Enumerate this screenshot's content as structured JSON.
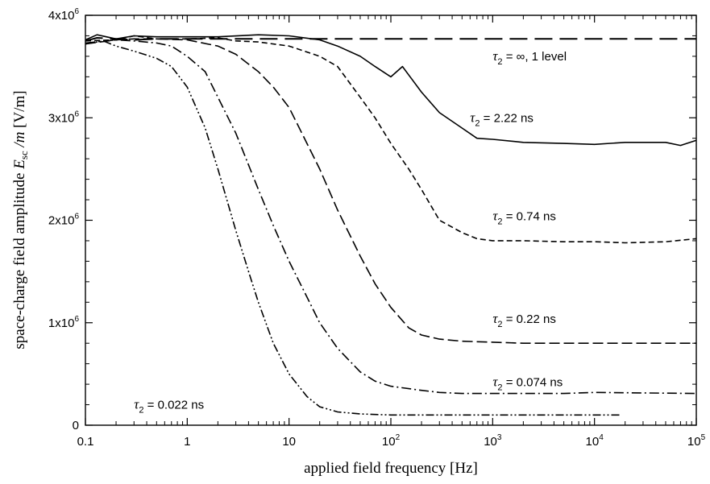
{
  "chart_data": {
    "type": "line",
    "title": "",
    "xlabel": "applied field frequency  [Hz]",
    "ylabel": {
      "prefix": "space-charge field amplitude  ",
      "symbol": "E",
      "symbol_sub": "sc",
      "divisor": " /m",
      "unit": "   [V/m]"
    },
    "xscale": "log",
    "xlim": [
      0.1,
      100000
    ],
    "ylim": [
      0,
      4000000
    ],
    "x_ticks": [
      {
        "value": 0.1,
        "base": "0.1",
        "exp": ""
      },
      {
        "value": 1,
        "base": "1",
        "exp": ""
      },
      {
        "value": 10,
        "base": "10",
        "exp": ""
      },
      {
        "value": 100,
        "base": "10",
        "exp": "2"
      },
      {
        "value": 1000,
        "base": "10",
        "exp": "3"
      },
      {
        "value": 10000,
        "base": "10",
        "exp": "4"
      },
      {
        "value": 100000,
        "base": "10",
        "exp": "5"
      }
    ],
    "y_ticks": [
      {
        "value": 0,
        "base": "0",
        "exp": ""
      },
      {
        "value": 1000000,
        "base": "1x10",
        "exp": "6"
      },
      {
        "value": 2000000,
        "base": "2x10",
        "exp": "6"
      },
      {
        "value": 3000000,
        "base": "3x10",
        "exp": "6"
      },
      {
        "value": 4000000,
        "base": "4x10",
        "exp": "6"
      }
    ],
    "grid": false,
    "legend": "none",
    "series": [
      {
        "tau_value": " = ∞, 1 level",
        "label_at": {
          "x": 1000,
          "y": 3560000
        },
        "dash": "22,9",
        "width": 2,
        "x": [
          0.1,
          0.13,
          0.2,
          0.3,
          0.5,
          1,
          2,
          5,
          10,
          100,
          1000,
          10000,
          100000
        ],
        "y": [
          3750000,
          3780000,
          3770000,
          3760000,
          3770000,
          3770000,
          3770000,
          3770000,
          3770000,
          3770000,
          3770000,
          3770000,
          3770000
        ]
      },
      {
        "tau_value": " = 2.22 ns",
        "label_at": {
          "x": 600,
          "y": 2960000
        },
        "dash": "",
        "width": 1.6,
        "x": [
          0.1,
          0.13,
          0.2,
          0.3,
          0.5,
          1,
          2,
          5,
          10,
          20,
          30,
          50,
          70,
          100,
          130,
          200,
          300,
          500,
          700,
          1000,
          2000,
          5000,
          10000,
          20000,
          50000,
          70000,
          100000
        ],
        "y": [
          3760000,
          3810000,
          3770000,
          3800000,
          3790000,
          3790000,
          3790000,
          3810000,
          3800000,
          3760000,
          3700000,
          3600000,
          3500000,
          3400000,
          3500000,
          3250000,
          3050000,
          2900000,
          2800000,
          2790000,
          2760000,
          2750000,
          2740000,
          2760000,
          2760000,
          2730000,
          2780000
        ]
      },
      {
        "tau_value": " = 0.74 ns",
        "label_at": {
          "x": 1000,
          "y": 2000000
        },
        "dash": "7,4",
        "width": 1.6,
        "x": [
          0.1,
          0.2,
          0.3,
          0.5,
          1,
          2,
          3,
          5,
          10,
          20,
          30,
          50,
          70,
          100,
          150,
          200,
          300,
          500,
          700,
          1000,
          2000,
          5000,
          10000,
          20000,
          50000,
          100000
        ],
        "y": [
          3750000,
          3760000,
          3800000,
          3770000,
          3770000,
          3780000,
          3750000,
          3740000,
          3700000,
          3600000,
          3500000,
          3200000,
          3000000,
          2750000,
          2500000,
          2300000,
          2000000,
          1880000,
          1820000,
          1800000,
          1800000,
          1790000,
          1790000,
          1780000,
          1790000,
          1820000
        ]
      },
      {
        "tau_value": " = 0.22 ns",
        "label_at": {
          "x": 1000,
          "y": 1000000
        },
        "dash": "13,5",
        "width": 1.6,
        "x": [
          0.1,
          0.2,
          0.3,
          0.5,
          1,
          2,
          3,
          5,
          7,
          10,
          15,
          20,
          30,
          50,
          70,
          100,
          150,
          200,
          300,
          500,
          1000,
          2000,
          5000,
          10000,
          50000,
          100000
        ],
        "y": [
          3720000,
          3760000,
          3770000,
          3770000,
          3760000,
          3700000,
          3620000,
          3450000,
          3300000,
          3100000,
          2750000,
          2500000,
          2100000,
          1650000,
          1380000,
          1150000,
          950000,
          880000,
          840000,
          820000,
          810000,
          800000,
          800000,
          800000,
          800000,
          800000
        ]
      },
      {
        "tau_value": " = 0.074 ns",
        "label_at": {
          "x": 1000,
          "y": 380000
        },
        "dash": "12,4,2,4",
        "width": 1.6,
        "x": [
          0.1,
          0.2,
          0.3,
          0.5,
          0.7,
          1,
          1.5,
          2,
          3,
          5,
          7,
          10,
          15,
          20,
          30,
          50,
          70,
          100,
          200,
          300,
          500,
          1000,
          2000,
          5000,
          10000,
          100000
        ],
        "y": [
          3730000,
          3760000,
          3750000,
          3730000,
          3700000,
          3600000,
          3450000,
          3200000,
          2850000,
          2300000,
          1950000,
          1600000,
          1250000,
          1000000,
          750000,
          520000,
          430000,
          380000,
          340000,
          320000,
          310000,
          310000,
          310000,
          310000,
          320000,
          310000
        ]
      },
      {
        "tau_value": " = 0.022 ns",
        "label_at": {
          "x": 0.3,
          "y": 160000
        },
        "dash": "10,3,2,3,2,3",
        "width": 1.6,
        "x": [
          0.1,
          0.15,
          0.2,
          0.3,
          0.5,
          0.7,
          1,
          1.5,
          2,
          3,
          4,
          5,
          7,
          10,
          15,
          20,
          30,
          50,
          100,
          300,
          1000,
          3000,
          10000,
          18000
        ],
        "y": [
          3720000,
          3750000,
          3700000,
          3650000,
          3580000,
          3500000,
          3300000,
          2900000,
          2500000,
          1900000,
          1500000,
          1200000,
          800000,
          500000,
          280000,
          180000,
          130000,
          110000,
          100000,
          100000,
          100000,
          100000,
          100000,
          100000
        ]
      }
    ]
  }
}
